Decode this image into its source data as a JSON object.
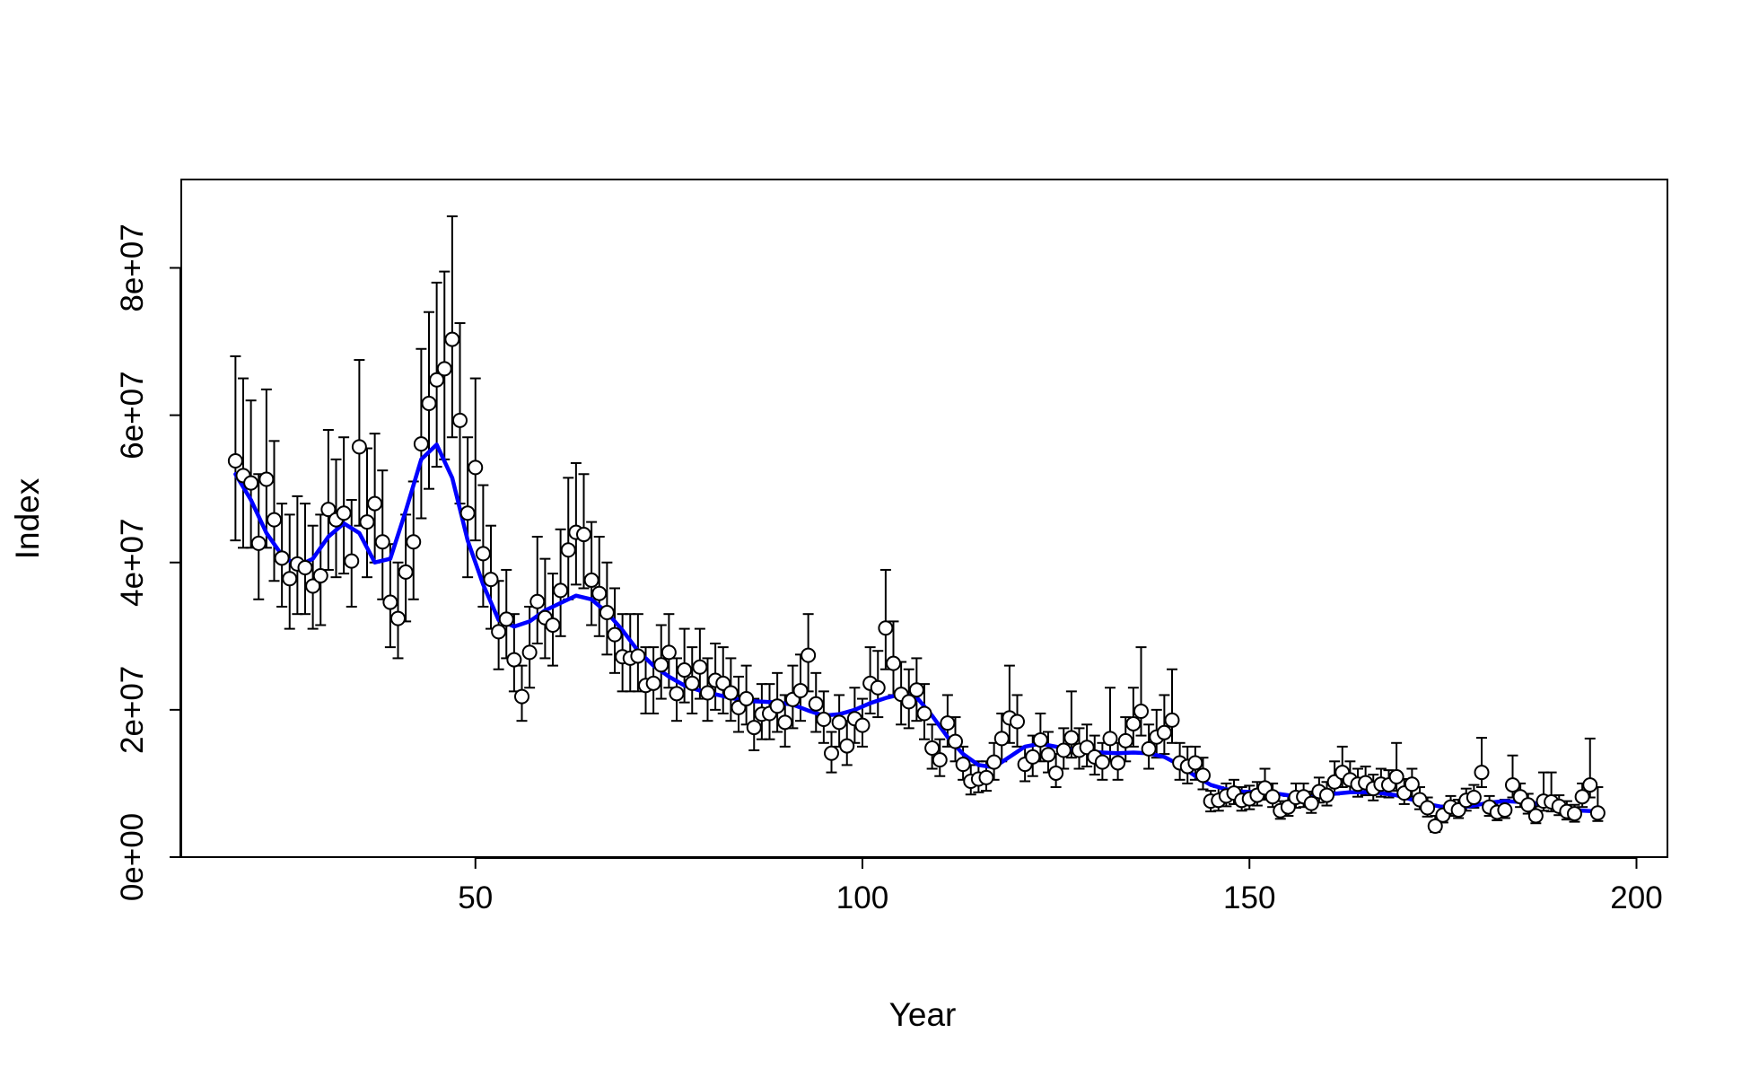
{
  "chart_data": {
    "type": "scatter",
    "title": "",
    "xlabel": "Year",
    "ylabel": "Index",
    "xlim": [
      12,
      204
    ],
    "ylim": [
      0,
      92000000
    ],
    "xticks": [
      50,
      100,
      150,
      200
    ],
    "yticks": [
      0,
      20000000,
      40000000,
      60000000,
      80000000
    ],
    "xtick_labels": [
      "50",
      "100",
      "150",
      "200"
    ],
    "ytick_labels": [
      "0e+00",
      "2e+07",
      "4e+07",
      "6e+07",
      "8e+07"
    ],
    "grid": false,
    "legend": "none",
    "colors": {
      "points": "#ffffff",
      "point_outline": "#000000",
      "error_bars": "#000000",
      "trend": "#0000ff"
    },
    "series": [
      {
        "type": "scatter-errorbar",
        "x": [
          19,
          20,
          21,
          22,
          23,
          24,
          25,
          26,
          27,
          28,
          29,
          30,
          31,
          32,
          33,
          34,
          35,
          36,
          37,
          38,
          39,
          40,
          41,
          42,
          43,
          44,
          45,
          46,
          47,
          48,
          49,
          50,
          51,
          52,
          53,
          54,
          55,
          56,
          57,
          58,
          59,
          60,
          61,
          62,
          63,
          64,
          65,
          66,
          67,
          68,
          69,
          70,
          71,
          72,
          73,
          74,
          75,
          76,
          77,
          78,
          79,
          80,
          81,
          82,
          83,
          84,
          85,
          86,
          87,
          88,
          89,
          90,
          91,
          92,
          93,
          94,
          95,
          96,
          97,
          98,
          99,
          100,
          101,
          102,
          103,
          104,
          105,
          106,
          107,
          108,
          109,
          110,
          111,
          112,
          113,
          114,
          115,
          116,
          117,
          118,
          119,
          120,
          121,
          122,
          123,
          124,
          125,
          126,
          127,
          128,
          129,
          130,
          131,
          132,
          133,
          134,
          135,
          136,
          137,
          138,
          139,
          140,
          141,
          142,
          143,
          144,
          145,
          146,
          147,
          148,
          149,
          150,
          151,
          152,
          153,
          154,
          155,
          156,
          157,
          158,
          159,
          160,
          161,
          162,
          163,
          164,
          165,
          166,
          167,
          168,
          169,
          170,
          171,
          172,
          173,
          174,
          175,
          176,
          177,
          178,
          179,
          180,
          181,
          182,
          183,
          184,
          185,
          186,
          187,
          188,
          189,
          190,
          191,
          192,
          193,
          194,
          195
        ],
        "y": [
          53800000,
          51800000,
          50800000,
          42600000,
          51300000,
          45800000,
          40600000,
          37800000,
          39800000,
          39300000,
          36800000,
          38200000,
          47200000,
          45800000,
          46700000,
          40200000,
          55700000,
          45500000,
          48000000,
          42800000,
          34600000,
          32400000,
          38700000,
          42800000,
          56100000,
          61600000,
          64800000,
          66300000,
          70300000,
          59300000,
          46700000,
          52900000,
          41200000,
          37700000,
          30600000,
          32300000,
          26800000,
          21800000,
          27800000,
          34700000,
          32500000,
          31500000,
          36200000,
          41700000,
          44100000,
          43800000,
          37600000,
          35800000,
          33200000,
          30200000,
          27200000,
          27000000,
          27300000,
          23300000,
          23600000,
          26100000,
          27800000,
          22200000,
          25400000,
          23600000,
          25800000,
          22300000,
          24000000,
          23600000,
          22300000,
          20300000,
          21500000,
          17600000,
          19400000,
          19500000,
          20500000,
          18300000,
          21400000,
          22600000,
          27400000,
          20800000,
          18700000,
          14100000,
          18300000,
          15100000,
          18800000,
          17900000,
          23600000,
          23000000,
          31100000,
          26300000,
          22100000,
          21100000,
          22700000,
          19500000,
          14800000,
          13200000,
          18200000,
          15700000,
          12600000,
          10300000,
          10600000,
          10800000,
          12900000,
          16100000,
          18900000,
          18400000,
          12600000,
          13600000,
          15900000,
          13900000,
          11400000,
          14500000,
          16200000,
          14500000,
          14900000,
          13600000,
          12900000,
          16100000,
          12800000,
          15800000,
          18100000,
          19800000,
          14700000,
          16300000,
          16900000,
          18600000,
          12800000,
          12300000,
          12800000,
          11100000,
          7600000,
          7700000,
          8300000,
          8700000,
          7700000,
          7900000,
          8400000,
          9400000,
          8200000,
          6300000,
          6800000,
          8100000,
          8200000,
          7300000,
          8900000,
          8400000,
          10200000,
          11500000,
          10500000,
          9900000,
          10100000,
          9300000,
          9900000,
          9800000,
          10900000,
          8700000,
          9900000,
          7800000,
          6700000,
          4200000,
          5700000,
          6800000,
          6400000,
          7700000,
          8100000,
          11500000,
          6800000,
          6100000,
          6400000,
          9800000,
          8200000,
          7100000,
          5600000,
          7600000,
          7500000,
          6900000,
          6200000,
          5900000,
          8200000,
          9800000,
          6000000
        ],
        "error_low": [
          43000000,
          42000000,
          42000000,
          35000000,
          42000000,
          37500000,
          34000000,
          31000000,
          33000000,
          33000000,
          31000000,
          31500000,
          39000000,
          38000000,
          38500000,
          34000000,
          45000000,
          38000000,
          40000000,
          35000000,
          28500000,
          27000000,
          32000000,
          35000000,
          46000000,
          50000000,
          53000000,
          54000000,
          57000000,
          48000000,
          38000000,
          43000000,
          34000000,
          31000000,
          25500000,
          27000000,
          22500000,
          18500000,
          23000000,
          29000000,
          27000000,
          26000000,
          30000000,
          35000000,
          37000000,
          36500000,
          31500000,
          30000000,
          27500000,
          25000000,
          22500000,
          22500000,
          22500000,
          19500000,
          19500000,
          21500000,
          23000000,
          18500000,
          21000000,
          19500000,
          21500000,
          18500000,
          20000000,
          19500000,
          18500000,
          17000000,
          18000000,
          14500000,
          16000000,
          16000000,
          17000000,
          15000000,
          17500000,
          18500000,
          22500000,
          17000000,
          15500000,
          11500000,
          15000000,
          12500000,
          15500000,
          15000000,
          19500000,
          19000000,
          25500000,
          22000000,
          18000000,
          17500000,
          18500000,
          16000000,
          12000000,
          11000000,
          15000000,
          13000000,
          10500000,
          8500000,
          8800000,
          9000000,
          10500000,
          13000000,
          15500000,
          15000000,
          10300000,
          11000000,
          13000000,
          11500000,
          9500000,
          12000000,
          13500000,
          12000000,
          12300000,
          11200000,
          10500000,
          13000000,
          10500000,
          13000000,
          15000000,
          16500000,
          12000000,
          13500000,
          14000000,
          15500000,
          10500000,
          10000000,
          10500000,
          9200000,
          6200000,
          6300000,
          6900000,
          7200000,
          6300000,
          6500000,
          7000000,
          7800000,
          6800000,
          5200000,
          5600000,
          6700000,
          6800000,
          6000000,
          7400000,
          7000000,
          8500000,
          9500000,
          8700000,
          8200000,
          8400000,
          7700000,
          8200000,
          8100000,
          9000000,
          7200000,
          8200000,
          6500000,
          5500000,
          3400000,
          4700000,
          5600000,
          5300000,
          6300000,
          6700000,
          9500000,
          5600000,
          5000000,
          5300000,
          8100000,
          6800000,
          5900000,
          4600000,
          6300000,
          6200000,
          5700000,
          5100000,
          4800000,
          6800000,
          8100000,
          4900000
        ],
        "error_high": [
          68000000,
          65000000,
          62000000,
          52000000,
          63500000,
          56500000,
          48000000,
          46500000,
          49000000,
          48000000,
          45000000,
          46500000,
          58000000,
          54000000,
          57000000,
          48500000,
          67500000,
          55500000,
          57500000,
          52500000,
          42500000,
          40000000,
          46500000,
          51000000,
          69000000,
          74000000,
          78000000,
          79500000,
          87000000,
          72500000,
          57000000,
          65000000,
          50500000,
          45000000,
          37500000,
          39000000,
          33000000,
          26000000,
          34000000,
          43500000,
          40500000,
          38500000,
          44500000,
          51500000,
          53500000,
          52000000,
          45500000,
          43500000,
          40000000,
          36500000,
          33000000,
          33000000,
          33000000,
          28500000,
          28500000,
          31500000,
          33000000,
          27000000,
          31000000,
          28500000,
          31000000,
          27000000,
          29000000,
          28500000,
          27000000,
          24500000,
          26000000,
          21500000,
          23500000,
          23500000,
          25000000,
          22000000,
          26000000,
          27500000,
          33000000,
          25000000,
          22500000,
          17000000,
          22000000,
          18500000,
          23000000,
          21500000,
          28500000,
          28000000,
          39000000,
          32000000,
          26500000,
          25500000,
          27000000,
          23500000,
          18000000,
          16000000,
          22000000,
          19000000,
          15000000,
          12500000,
          13000000,
          13000000,
          15500000,
          19500000,
          26000000,
          22000000,
          15000000,
          16500000,
          19500000,
          17000000,
          14000000,
          17500000,
          22500000,
          17500000,
          18000000,
          16500000,
          15500000,
          23000000,
          15500000,
          19000000,
          23000000,
          28500000,
          18000000,
          20000000,
          22000000,
          25500000,
          15500000,
          15000000,
          15000000,
          13500000,
          9000000,
          9500000,
          10000000,
          10500000,
          9500000,
          9700000,
          10200000,
          12000000,
          10000000,
          7600000,
          8300000,
          10000000,
          10000000,
          8900000,
          10800000,
          10200000,
          13000000,
          15000000,
          13000000,
          12000000,
          12300000,
          11200000,
          12000000,
          11800000,
          15500000,
          10600000,
          12000000,
          9500000,
          8100000,
          5600000,
          7000000,
          8300000,
          7800000,
          9300000,
          9800000,
          16200000,
          8300000,
          7400000,
          7800000,
          13800000,
          10000000,
          8600000,
          6900000,
          11500000,
          11500000,
          8400000,
          7600000,
          7100000,
          10000000,
          16100000,
          9500000
        ]
      },
      {
        "type": "line",
        "x": [
          19,
          21,
          23,
          25,
          27,
          29,
          31,
          33,
          35,
          37,
          39,
          41,
          43,
          45,
          47,
          49,
          51,
          53,
          55,
          57,
          59,
          61,
          63,
          65,
          67,
          69,
          71,
          73,
          75,
          77,
          79,
          81,
          83,
          85,
          87,
          89,
          91,
          93,
          95,
          97,
          99,
          101,
          103,
          105,
          107,
          109,
          111,
          113,
          115,
          117,
          119,
          121,
          123,
          125,
          127,
          129,
          131,
          133,
          135,
          137,
          139,
          141,
          143,
          145,
          147,
          149,
          151,
          153,
          155,
          157,
          159,
          161,
          163,
          165,
          167,
          169,
          171,
          173,
          175,
          177,
          179,
          181,
          183,
          185,
          187,
          189,
          191,
          193,
          195
        ],
        "y": [
          52000000,
          48500000,
          44000000,
          41000000,
          39500000,
          40500000,
          43500000,
          45300000,
          44000000,
          40000000,
          40500000,
          47000000,
          54000000,
          56000000,
          51500000,
          43000000,
          37000000,
          32200000,
          31300000,
          32000000,
          33500000,
          34500000,
          35500000,
          35000000,
          33200000,
          30800000,
          28000000,
          26000000,
          24500000,
          23300000,
          22600000,
          22100000,
          21600000,
          21200000,
          21100000,
          21000000,
          20700000,
          19900000,
          19200000,
          19400000,
          20000000,
          20900000,
          21600000,
          22100000,
          21700000,
          19200000,
          16300000,
          14000000,
          12500000,
          12200000,
          13600000,
          15000000,
          15400000,
          15000000,
          14600000,
          14300000,
          14200000,
          14100000,
          14200000,
          14100000,
          13600000,
          12500000,
          11000000,
          9800000,
          9200000,
          8900000,
          8800000,
          8700000,
          8400000,
          8100000,
          8200000,
          8600000,
          8800000,
          8800000,
          8700000,
          8400000,
          7800000,
          7200000,
          6800000,
          6700000,
          7000000,
          7400000,
          7600000,
          7500000,
          7300000,
          7000000,
          6600000,
          6300000,
          6200000
        ]
      }
    ]
  }
}
